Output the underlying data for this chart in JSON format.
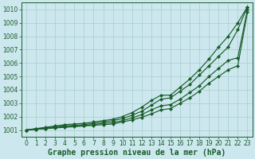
{
  "background_color": "#cce8ee",
  "grid_color": "#aacccc",
  "line_color": "#1a5c2a",
  "xlabel": "Graphe pression niveau de la mer (hPa)",
  "xlabel_fontsize": 7,
  "tick_fontsize": 5.5,
  "ylim": [
    1000.5,
    1010.5
  ],
  "xlim": [
    -0.5,
    23.5
  ],
  "yticks": [
    1001,
    1002,
    1003,
    1004,
    1005,
    1006,
    1007,
    1008,
    1009,
    1010
  ],
  "xticks": [
    0,
    1,
    2,
    3,
    4,
    5,
    6,
    7,
    8,
    9,
    10,
    11,
    12,
    13,
    14,
    15,
    16,
    17,
    18,
    19,
    20,
    21,
    22,
    23
  ],
  "series": [
    [
      1001.0,
      1001.1,
      1001.2,
      1001.3,
      1001.4,
      1001.45,
      1001.5,
      1001.6,
      1001.7,
      1001.8,
      1002.0,
      1002.3,
      1002.7,
      1003.2,
      1003.6,
      1003.6,
      1004.2,
      1004.8,
      1005.5,
      1006.3,
      1007.2,
      1008.0,
      1009.0,
      1010.2
    ],
    [
      1001.0,
      1001.1,
      1001.15,
      1001.25,
      1001.3,
      1001.35,
      1001.4,
      1001.5,
      1001.6,
      1001.7,
      1001.85,
      1002.1,
      1002.4,
      1002.85,
      1003.3,
      1003.4,
      1003.9,
      1004.4,
      1005.1,
      1005.8,
      1006.5,
      1007.2,
      1008.5,
      1010.2
    ],
    [
      1001.0,
      1001.05,
      1001.1,
      1001.2,
      1001.25,
      1001.3,
      1001.35,
      1001.4,
      1001.5,
      1001.55,
      1001.7,
      1001.9,
      1002.15,
      1002.5,
      1002.8,
      1002.9,
      1003.3,
      1003.8,
      1004.3,
      1005.0,
      1005.6,
      1006.2,
      1006.4,
      1010.0
    ],
    [
      1001.0,
      1001.05,
      1001.1,
      1001.15,
      1001.2,
      1001.25,
      1001.3,
      1001.35,
      1001.4,
      1001.45,
      1001.6,
      1001.75,
      1001.95,
      1002.2,
      1002.5,
      1002.6,
      1003.0,
      1003.4,
      1003.9,
      1004.5,
      1005.0,
      1005.5,
      1005.8,
      1009.8
    ]
  ],
  "marker": "D",
  "markersize": 2.2,
  "linewidth": 0.85
}
